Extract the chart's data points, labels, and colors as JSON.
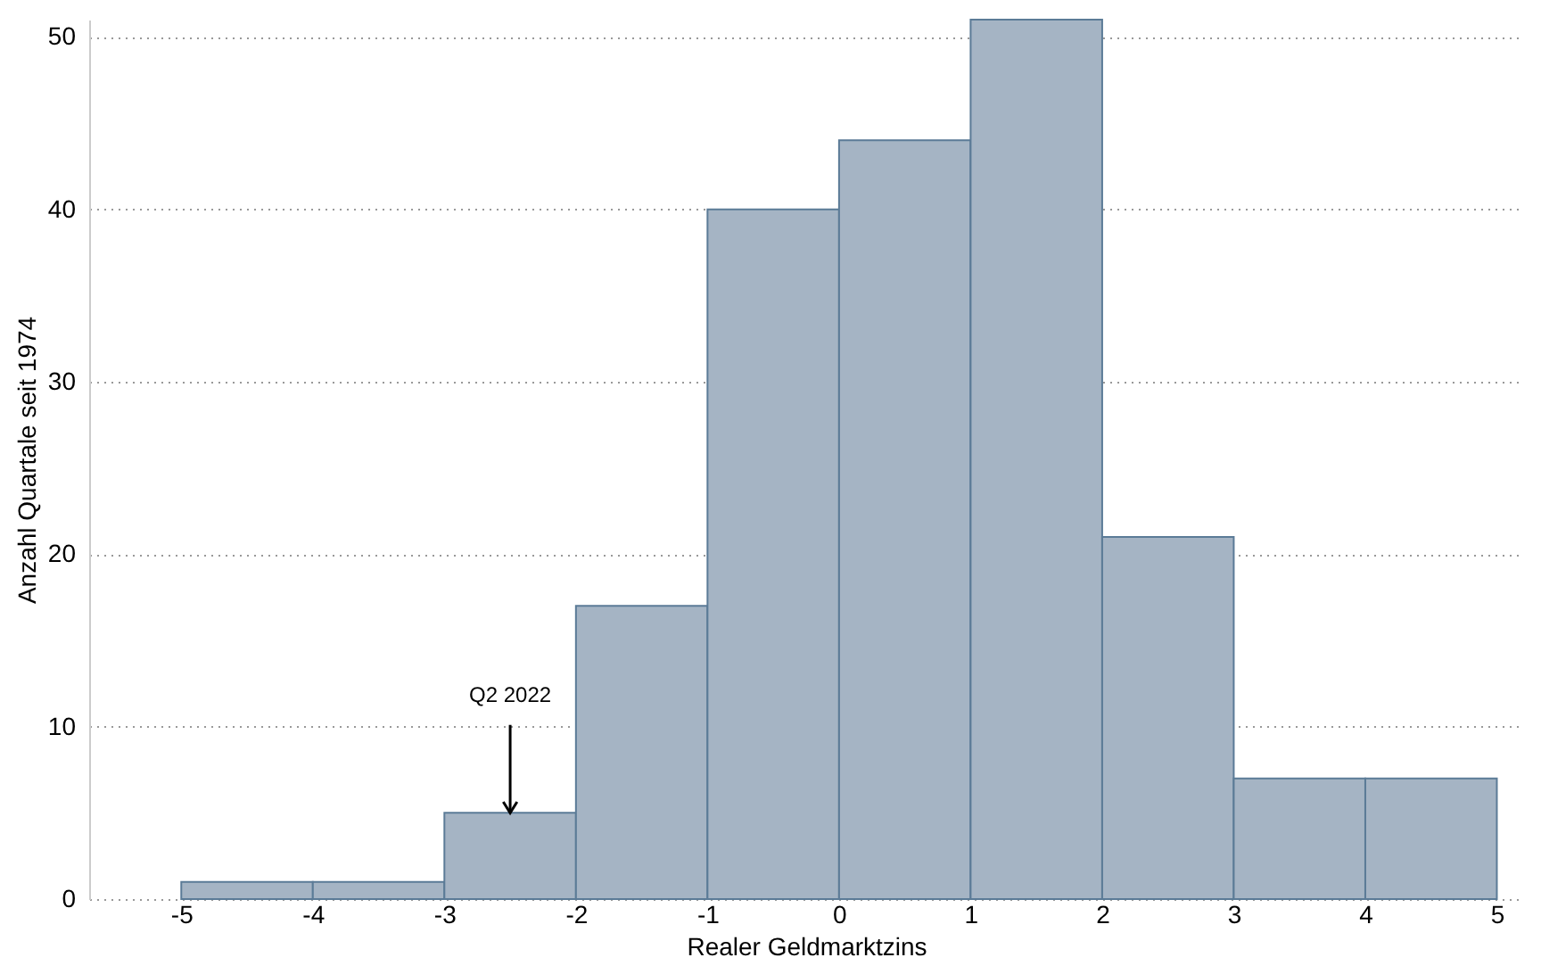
{
  "chart_data": {
    "type": "histogram",
    "xlabel": "Realer Geldmarktzins",
    "ylabel": "Anzahl Quartale seit 1974",
    "bins": [
      -5,
      -4,
      -3,
      -2,
      -1,
      0,
      1,
      2,
      3,
      4,
      5
    ],
    "values": [
      1,
      1,
      5,
      17,
      40,
      44,
      51,
      21,
      7,
      7
    ],
    "color": "#a5b4c4",
    "xlim": [
      -5.7,
      5.2
    ],
    "xticks": [
      -5,
      -4,
      -3,
      -2,
      -1,
      0,
      1,
      2,
      3,
      4,
      5
    ],
    "ylim": [
      0,
      51
    ],
    "yticks": [
      0,
      10,
      20,
      30,
      40,
      50
    ],
    "grid": "y",
    "annotations": [
      {
        "text": "Q2 2022",
        "x": -2.5,
        "y": 5
      }
    ]
  }
}
